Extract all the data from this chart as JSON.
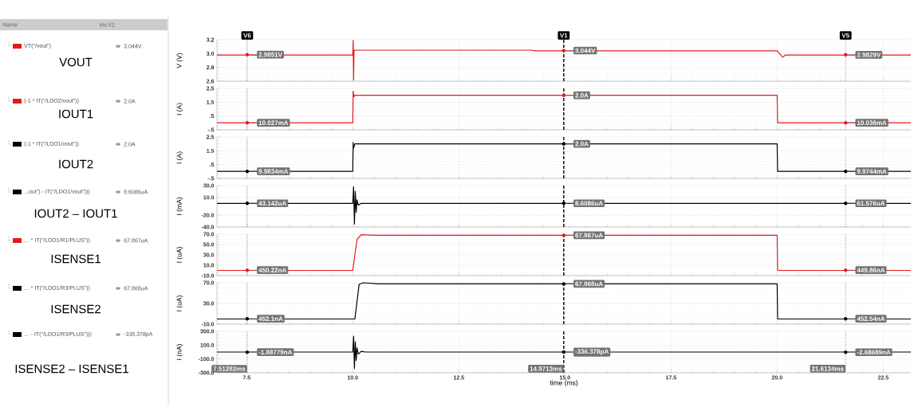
{
  "chart_data": [
    {
      "type": "line",
      "ylabel": "V (V)",
      "xlim": [
        6.8,
        23.15
      ],
      "ylim": [
        2.6,
        3.2
      ],
      "grid": true,
      "legend": "left",
      "tick_labels": "y",
      "xticks": [
        7.5,
        10,
        12.5,
        15,
        17.5,
        20,
        22.5
      ],
      "yticks": [
        2.6,
        2.8,
        {
          "value": 3,
          "label": "3.0"
        },
        3.2
      ],
      "series": [
        {
          "name": "VT(\"/vout\")",
          "color": "#e31a1c",
          "x": [
            6.8,
            10.0,
            10.01,
            10.02,
            10.03,
            14.2,
            14.3,
            20.0,
            20.13,
            20.2,
            23.15
          ],
          "values": [
            2.98,
            2.98,
            3.19,
            2.62,
            3.05,
            3.05,
            3.04,
            3.04,
            2.95,
            2.98,
            2.98
          ]
        }
      ],
      "ref_lines": [
        {
          "axis": "x",
          "value": 7.51282,
          "label": "V6",
          "line_style": "dotted",
          "color": "#555555"
        },
        {
          "axis": "x",
          "value": 14.9713,
          "label": "V1",
          "line_style": "dashed",
          "color": "#000000"
        },
        {
          "axis": "x",
          "value": 21.6134,
          "label": "V5",
          "line_style": "dotted",
          "color": "#555555"
        }
      ],
      "annotations": [
        "Name",
        "Vis",
        "V1",
        "3.044V",
        "VOUT",
        {
          "text": "2.9851V",
          "x": 7.51282,
          "y": 2.9851
        },
        {
          "text": "3.044V",
          "x": 14.9713,
          "y": 3.044
        },
        {
          "text": "2.9829V",
          "x": 21.6134,
          "y": 2.9829
        }
      ]
    },
    {
      "type": "line",
      "ylabel": "I (A)",
      "xlim": [
        6.8,
        23.15
      ],
      "ylim": [
        -0.5,
        2.5
      ],
      "grid": true,
      "legend": "left",
      "tick_labels": "y",
      "xticks": [
        7.5,
        10,
        12.5,
        15,
        17.5,
        20,
        22.5
      ],
      "yticks": [
        {
          "value": -0.5,
          "label": "-.5"
        },
        {
          "value": 0.5,
          "label": ".5"
        },
        1.5,
        2.5
      ],
      "series": [
        {
          "name": "(-1 * IT(\"/LDO2/vout\"))",
          "color": "#e31a1c",
          "x": [
            6.8,
            10.0,
            10.01,
            10.03,
            10.05,
            20.0,
            20.01,
            23.15
          ],
          "values": [
            0.01,
            0.01,
            2.3,
            1.9,
            2.0,
            2.0,
            0.01,
            0.01
          ]
        }
      ],
      "ref_lines": [
        {
          "axis": "x",
          "value": 7.51282,
          "line_style": "dotted",
          "color": "#555555"
        },
        {
          "axis": "x",
          "value": 14.9713,
          "line_style": "dashed",
          "color": "#000000"
        },
        {
          "axis": "x",
          "value": 21.6134,
          "line_style": "dotted",
          "color": "#555555"
        }
      ],
      "annotations": [
        "2.0A",
        "IOUT1",
        {
          "text": "10.027mA",
          "x": 7.51282,
          "y": 0.010027
        },
        {
          "text": "2.0A",
          "x": 14.9713,
          "y": 2.0
        },
        {
          "text": "10.036mA",
          "x": 21.6134,
          "y": 0.010036
        }
      ]
    },
    {
      "type": "line",
      "ylabel": "I (A)",
      "xlim": [
        6.8,
        23.15
      ],
      "ylim": [
        -0.5,
        2.5
      ],
      "grid": true,
      "legend": "left",
      "tick_labels": "y",
      "xticks": [
        7.5,
        10,
        12.5,
        15,
        17.5,
        20,
        22.5
      ],
      "yticks": [
        {
          "value": -0.5,
          "label": "-.5"
        },
        {
          "value": 0.5,
          "label": ".5"
        },
        1.5,
        2.5
      ],
      "series": [
        {
          "name": "(-1 * IT(\"/LDO1/vout\"))",
          "color": "#000000",
          "x": [
            6.8,
            10.0,
            10.01,
            10.02,
            10.05,
            20.0,
            20.01,
            23.15
          ],
          "values": [
            0.01,
            0.01,
            2.1,
            1.7,
            2.0,
            2.0,
            0.01,
            0.01
          ]
        }
      ],
      "ref_lines": [
        {
          "axis": "x",
          "value": 7.51282,
          "line_style": "dotted",
          "color": "#555555"
        },
        {
          "axis": "x",
          "value": 14.9713,
          "line_style": "dashed",
          "color": "#000000"
        },
        {
          "axis": "x",
          "value": 21.6134,
          "line_style": "dotted",
          "color": "#555555"
        }
      ],
      "annotations": [
        "2.0A",
        "IOUT2",
        {
          "text": "9.9834mA",
          "x": 7.51282,
          "y": 0.0099834
        },
        {
          "text": "2.0A",
          "x": 14.9713,
          "y": 2.0
        },
        {
          "text": "9.9744mA",
          "x": 21.6134,
          "y": 0.0099744
        }
      ]
    },
    {
      "type": "line",
      "ylabel": "I (mA)",
      "xlim": [
        6.8,
        23.15
      ],
      "ylim": [
        -40,
        30
      ],
      "grid": true,
      "legend": "left",
      "tick_labels": "y",
      "xticks": [
        7.5,
        10,
        12.5,
        15,
        17.5,
        20,
        22.5
      ],
      "yticks": [
        {
          "value": -40,
          "label": "-40.0"
        },
        {
          "value": -20,
          "label": "-20.0"
        },
        {
          "value": 10,
          "label": "10.0"
        },
        {
          "value": 30,
          "label": "30.0"
        }
      ],
      "series": [
        {
          "name": "...out\") - IT(\"/LDO1/vout\")))",
          "color": "#000000",
          "x": [
            6.8,
            10.0,
            10.02,
            10.04,
            10.06,
            10.08,
            10.1,
            10.13,
            10.2,
            23.15
          ],
          "values": [
            0,
            0,
            28,
            -35,
            20,
            -15,
            6,
            -3,
            0,
            0
          ]
        }
      ],
      "ref_lines": [
        {
          "axis": "x",
          "value": 7.51282,
          "line_style": "dotted",
          "color": "#555555"
        },
        {
          "axis": "x",
          "value": 14.9713,
          "line_style": "dashed",
          "color": "#000000"
        },
        {
          "axis": "x",
          "value": 21.6134,
          "line_style": "dotted",
          "color": "#555555"
        }
      ],
      "annotations": [
        "8.6086uA",
        "IOUT2 – IOUT1",
        {
          "text": "43.142uA",
          "x": 7.51282,
          "y": 0.043142
        },
        {
          "text": "8.6086uA",
          "x": 14.9713,
          "y": 0.0086086
        },
        {
          "text": "61.576uA",
          "x": 21.6134,
          "y": 0.061576
        }
      ]
    },
    {
      "type": "line",
      "ylabel": "I (uA)",
      "xlim": [
        6.8,
        23.15
      ],
      "ylim": [
        -10,
        70
      ],
      "grid": true,
      "legend": "left",
      "tick_labels": "y",
      "xticks": [
        7.5,
        10,
        12.5,
        15,
        17.5,
        20,
        22.5
      ],
      "yticks": [
        {
          "value": -10,
          "label": "-10.0"
        },
        {
          "value": 10,
          "label": "10.0"
        },
        {
          "value": 30,
          "label": "30.0"
        },
        {
          "value": 50,
          "label": "50.0"
        },
        {
          "value": 70,
          "label": "70.0"
        }
      ],
      "series": [
        {
          "name": "... * IT(\"/LDO1/R1/PLUS\"))",
          "color": "#e31a1c",
          "x": [
            6.8,
            10.0,
            10.1,
            10.2,
            10.5,
            20.0,
            20.01,
            23.15
          ],
          "values": [
            0,
            0,
            60,
            69,
            68,
            68,
            0,
            0
          ]
        }
      ],
      "ref_lines": [
        {
          "axis": "x",
          "value": 7.51282,
          "line_style": "dotted",
          "color": "#555555"
        },
        {
          "axis": "x",
          "value": 14.9713,
          "line_style": "dashed",
          "color": "#000000"
        },
        {
          "axis": "x",
          "value": 21.6134,
          "line_style": "dotted",
          "color": "#555555"
        }
      ],
      "annotations": [
        "67.867uA",
        "ISENSE1",
        {
          "text": "450.22nA",
          "x": 7.51282,
          "y": 0.45022
        },
        {
          "text": "67.867uA",
          "x": 14.9713,
          "y": 67.867
        },
        {
          "text": "449.86nA",
          "x": 21.6134,
          "y": 0.44986
        }
      ]
    },
    {
      "type": "line",
      "ylabel": "I (uA)",
      "xlim": [
        6.8,
        23.15
      ],
      "ylim": [
        -10,
        70
      ],
      "grid": true,
      "legend": "left",
      "tick_labels": "y",
      "xticks": [
        7.5,
        10,
        12.5,
        15,
        17.5,
        20,
        22.5
      ],
      "yticks": [
        {
          "value": -10,
          "label": "-10.0"
        },
        {
          "value": 30,
          "label": "30.0"
        },
        {
          "value": 70,
          "label": "70.0"
        }
      ],
      "series": [
        {
          "name": "... * IT(\"/LDO1/R3/PLUS\"))",
          "color": "#000000",
          "x": [
            6.8,
            10.05,
            10.15,
            10.25,
            10.6,
            13.0,
            20.0,
            20.01,
            23.15
          ],
          "values": [
            0,
            0,
            67,
            70,
            68,
            68,
            68,
            0,
            0
          ]
        }
      ],
      "ref_lines": [
        {
          "axis": "x",
          "value": 7.51282,
          "line_style": "dotted",
          "color": "#555555"
        },
        {
          "axis": "x",
          "value": 14.9713,
          "line_style": "dashed",
          "color": "#000000"
        },
        {
          "axis": "x",
          "value": 21.6134,
          "line_style": "dotted",
          "color": "#555555"
        }
      ],
      "annotations": [
        "67.868uA",
        "ISENSE2",
        {
          "text": "452.1nA",
          "x": 7.51282,
          "y": 0.4521
        },
        {
          "text": "67.868uA",
          "x": 14.9713,
          "y": 67.868
        },
        {
          "text": "452.54nA",
          "x": 21.6134,
          "y": 0.45254
        }
      ]
    },
    {
      "type": "line",
      "ylabel": "I (nA)",
      "xlabel": "time (ms)",
      "xlim": [
        6.8,
        23.15
      ],
      "ylim": [
        -300,
        300
      ],
      "grid": true,
      "legend": "left",
      "xticks": [
        7.5,
        {
          "value": 10,
          "label": "10.0"
        },
        12.5,
        {
          "value": 15,
          "label": "15.0"
        },
        17.5,
        {
          "value": 20,
          "label": "20.0"
        },
        22.5
      ],
      "yticks": [
        {
          "value": -300,
          "label": "-300.0"
        },
        {
          "value": -100,
          "label": "-100.0"
        },
        {
          "value": 100,
          "label": "100.0"
        },
        {
          "value": 300,
          "label": "300.0"
        }
      ],
      "series": [
        {
          "name": "... - IT(\"/LDO1/R3/PLUS\")))",
          "color": "#000000",
          "x": [
            6.8,
            10.0,
            10.02,
            10.04,
            10.06,
            10.08,
            10.1,
            10.13,
            10.2,
            10.3,
            23.15
          ],
          "values": [
            0,
            0,
            230,
            -240,
            150,
            -120,
            60,
            -30,
            10,
            0,
            0
          ]
        }
      ],
      "ref_lines": [
        {
          "axis": "x",
          "value": 7.51282,
          "label": "7.51282ms",
          "line_style": "dotted",
          "color": "#555555"
        },
        {
          "axis": "x",
          "value": 14.9713,
          "label": "14.9713ms",
          "line_style": "dashed",
          "color": "#000000"
        },
        {
          "axis": "x",
          "value": 21.6134,
          "label": "21.6134ms",
          "line_style": "dotted",
          "color": "#555555"
        }
      ],
      "annotations": [
        "-336.378pA",
        "ISENSE2 – ISENSE1",
        {
          "text": "-1.88779nA",
          "x": 7.51282,
          "y": -1.88779
        },
        {
          "text": "-336.378pA",
          "x": 14.9713,
          "y": -0.336378
        },
        {
          "text": "-2.68689nA",
          "x": 21.6134,
          "y": -2.68689
        }
      ]
    }
  ]
}
